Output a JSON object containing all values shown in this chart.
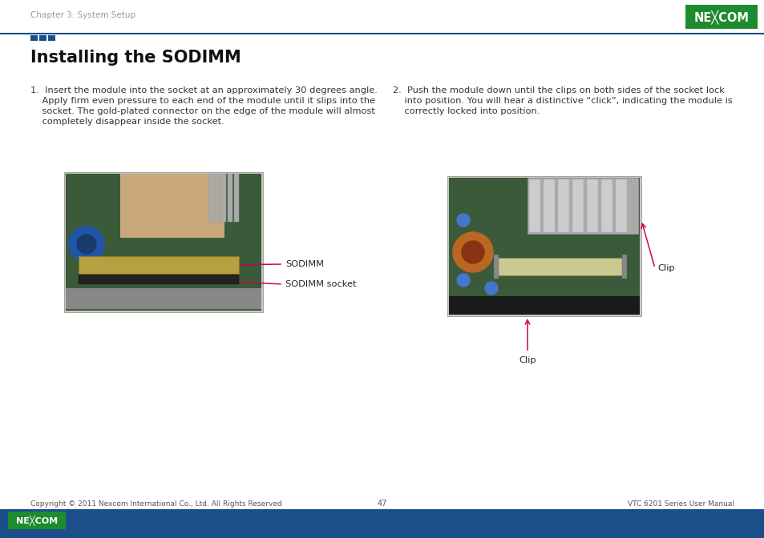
{
  "page_title": "Installing the SODIMM",
  "chapter_header": "Chapter 3: System Setup",
  "bg_color": "#ffffff",
  "header_line_color": "#1b4f8a",
  "title_font_size": 15,
  "body_font_size": 8.2,
  "label_font_size": 8.2,
  "step1_lines": [
    "1.  Insert the module into the socket at an approximately 30 degrees angle.",
    "    Apply firm even pressure to each end of the module until it slips into the",
    "    socket. The gold-plated connector on the edge of the module will almost",
    "    completely disappear inside the socket."
  ],
  "step2_lines": [
    "2.  Push the module down until the clips on both sides of the socket lock",
    "    into position. You will hear a distinctive “click”, indicating the module is",
    "    correctly locked into position."
  ],
  "label1": "SODIMM",
  "label2": "SODIMM socket",
  "label3": "Clip",
  "label4": "Clip",
  "label_color": "#222222",
  "arrow_color": "#cc0055",
  "footer_bg": "#1b4f8a",
  "footer_text_color": "#ffffff",
  "footer_center": "47",
  "footer_right": "VTC 6201 Series User Manual",
  "footer_copyright": "Copyright © 2011 Nexcom International Co., Ltd. All Rights Reserved",
  "nexcom_green": "#1e8b2e",
  "header_text_color": "#999999",
  "sq_colors": [
    "#1b4f8a",
    "#1b4f8a",
    "#1b4f8a"
  ],
  "img1_placeholder": "#b0b0b0",
  "img2_placeholder": "#b0b0b0"
}
